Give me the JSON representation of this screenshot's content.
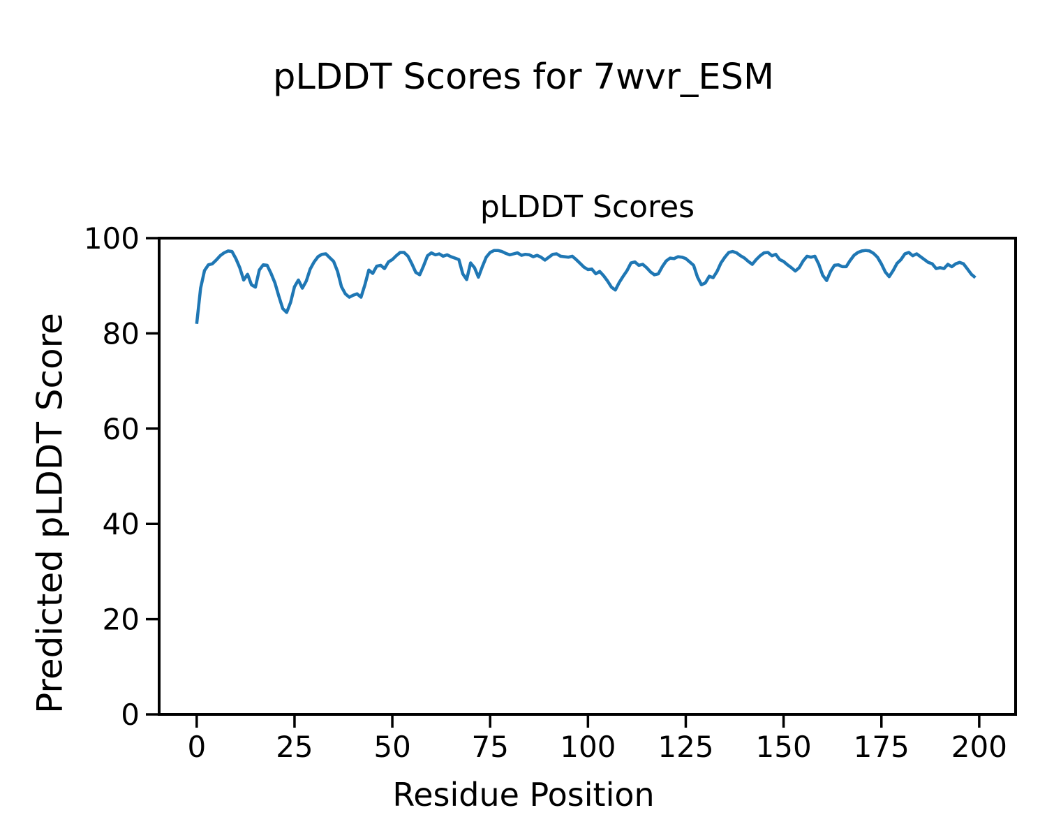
{
  "chart_data": {
    "type": "line",
    "suptitle": "pLDDT Scores for 7wvr_ESM",
    "title": "pLDDT Scores",
    "xlabel": "Residue Position",
    "ylabel": "Predicted pLDDT Score",
    "x_ticks": [
      0,
      25,
      50,
      75,
      100,
      125,
      150,
      175,
      200
    ],
    "y_ticks": [
      0,
      20,
      40,
      60,
      80,
      100
    ],
    "xlim": [
      -9.6,
      209.3
    ],
    "ylim": [
      0,
      100
    ],
    "grid": false,
    "legend": "none",
    "line_color": "#1f77b4",
    "x_description": "residue index 0..199 (one point per residue)",
    "values": [
      82.0,
      89.5,
      93.2,
      94.4,
      94.6,
      95.4,
      96.3,
      96.9,
      97.3,
      97.2,
      95.7,
      93.8,
      91.2,
      92.4,
      90.2,
      89.7,
      93.3,
      94.4,
      94.3,
      92.6,
      90.6,
      87.8,
      85.2,
      84.4,
      86.5,
      89.8,
      91.2,
      89.5,
      91.0,
      93.5,
      95.0,
      96.1,
      96.6,
      96.7,
      95.9,
      95.1,
      93.0,
      89.8,
      88.3,
      87.6,
      88.0,
      88.3,
      87.6,
      90.2,
      93.3,
      92.6,
      94.1,
      94.3,
      93.6,
      95.0,
      95.5,
      96.3,
      97.0,
      97.0,
      96.2,
      94.6,
      92.8,
      92.3,
      94.2,
      96.3,
      96.9,
      96.5,
      96.7,
      96.2,
      96.5,
      96.1,
      95.8,
      95.5,
      92.5,
      91.3,
      94.8,
      93.8,
      91.8,
      94.0,
      96.0,
      97.0,
      97.4,
      97.4,
      97.2,
      96.8,
      96.5,
      96.7,
      96.9,
      96.4,
      96.6,
      96.5,
      96.1,
      96.4,
      96.0,
      95.4,
      96.0,
      96.6,
      96.7,
      96.2,
      96.1,
      96.0,
      96.2,
      95.5,
      94.7,
      93.9,
      93.4,
      93.5,
      92.5,
      93.0,
      92.1,
      91.0,
      89.7,
      89.1,
      90.7,
      92.0,
      93.2,
      94.8,
      95.0,
      94.3,
      94.5,
      93.8,
      92.9,
      92.3,
      92.5,
      94.0,
      95.2,
      95.8,
      95.7,
      96.1,
      96.0,
      95.7,
      95.0,
      94.3,
      91.8,
      90.2,
      90.6,
      92.0,
      91.7,
      93.0,
      94.8,
      96.0,
      97.0,
      97.2,
      96.9,
      96.3,
      95.8,
      95.1,
      94.5,
      95.5,
      96.3,
      96.9,
      97.0,
      96.3,
      96.6,
      95.5,
      95.1,
      94.4,
      93.8,
      93.1,
      93.8,
      95.2,
      96.2,
      96.0,
      96.2,
      94.5,
      92.2,
      91.1,
      93.0,
      94.3,
      94.4,
      94.0,
      94.0,
      95.3,
      96.4,
      97.0,
      97.3,
      97.4,
      97.3,
      96.8,
      96.0,
      94.6,
      92.9,
      91.9,
      93.2,
      94.7,
      95.5,
      96.7,
      97.0,
      96.3,
      96.7,
      96.1,
      95.5,
      94.9,
      94.6,
      93.6,
      93.8,
      93.6,
      94.5,
      94.0,
      94.6,
      94.9,
      94.6,
      93.5,
      92.4,
      91.7
    ]
  }
}
